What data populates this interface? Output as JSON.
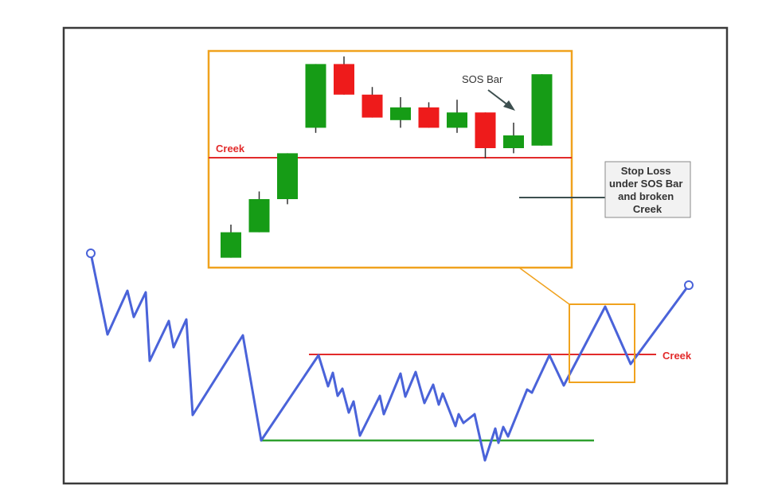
{
  "labels": {
    "creek_inset": "Creek",
    "creek_main": "Creek",
    "sos_bar": "SOS Bar",
    "stop_loss_lines": [
      "Stop Loss",
      "under SOS Bar",
      "and broken",
      "Creek"
    ]
  },
  "colors": {
    "border": "#3a3a3a",
    "price_line": "#4a63d9",
    "creek_line": "#e22b2b",
    "support_line": "#2ea02e",
    "zoom_box": "#f0a21e",
    "bull_candle": "#169c16",
    "bear_candle": "#ee1b1b",
    "callout_bg": "#f2f2f2",
    "callout_border": "#8a8a8a",
    "leader_line": "#3d4f4f"
  },
  "candles": [
    {
      "dir": "bull",
      "o": 2,
      "c": 12,
      "h": 15,
      "l": 2
    },
    {
      "dir": "bull",
      "o": 12,
      "c": 25,
      "h": 28,
      "l": 12
    },
    {
      "dir": "bull",
      "o": 25,
      "c": 43,
      "h": 43,
      "l": 23
    },
    {
      "dir": "bull",
      "o": 53,
      "c": 78,
      "h": 78,
      "l": 51
    },
    {
      "dir": "bear",
      "o": 78,
      "c": 66,
      "h": 81,
      "l": 66
    },
    {
      "dir": "bear",
      "o": 66,
      "c": 57,
      "h": 69,
      "l": 57
    },
    {
      "dir": "bull",
      "o": 56,
      "c": 61,
      "h": 65,
      "l": 53
    },
    {
      "dir": "bear",
      "o": 61,
      "c": 53,
      "h": 63,
      "l": 53
    },
    {
      "dir": "bull",
      "o": 53,
      "c": 59,
      "h": 64,
      "l": 51
    },
    {
      "dir": "bear",
      "o": 59,
      "c": 45,
      "h": 59,
      "l": 41
    },
    {
      "dir": "bull",
      "o": 45,
      "c": 50,
      "h": 55,
      "l": 43
    },
    {
      "dir": "bull",
      "o": 46,
      "c": 74,
      "h": 74,
      "l": 46
    }
  ]
}
